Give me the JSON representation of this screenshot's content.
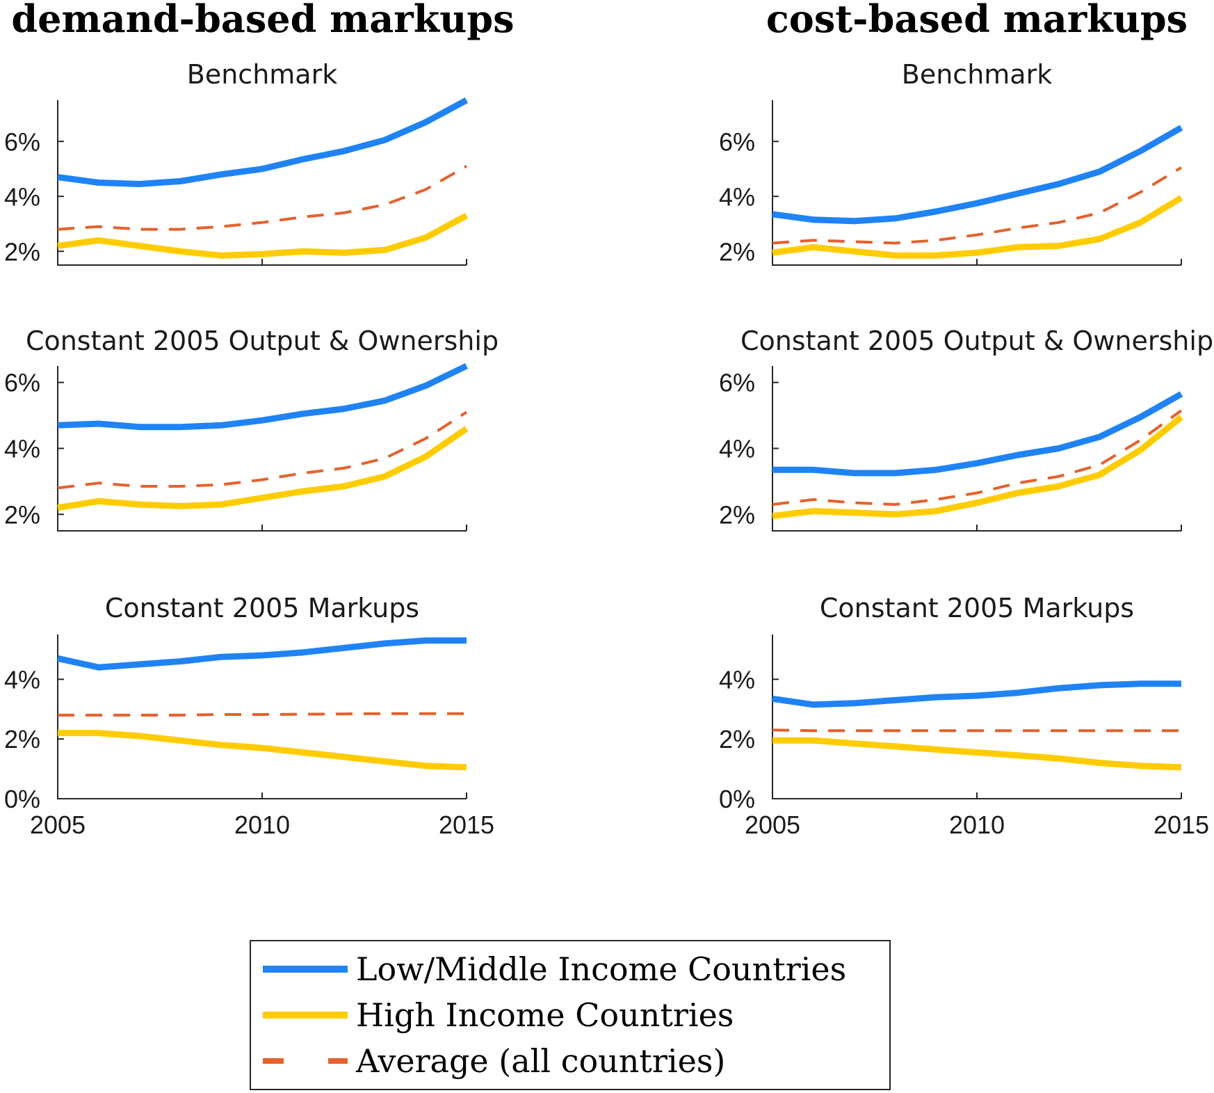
{
  "chart_data": [
    {
      "type": "line",
      "title": "Benchmark",
      "x": [
        2005,
        2006,
        2007,
        2008,
        2009,
        2010,
        2011,
        2012,
        2013,
        2014,
        2015
      ],
      "xlim": [
        2005,
        2015
      ],
      "ylim": [
        1.5,
        7.5
      ],
      "yticks": [
        2,
        4,
        6
      ],
      "ytick_labels": [
        "2%",
        "4%",
        "6%"
      ],
      "series": [
        {
          "key": "low_middle",
          "values": [
            4.7,
            4.5,
            4.45,
            4.55,
            4.8,
            5.0,
            5.35,
            5.65,
            6.05,
            6.7,
            7.5
          ]
        },
        {
          "key": "high",
          "values": [
            2.2,
            2.4,
            2.2,
            2.0,
            1.85,
            1.9,
            2.0,
            1.95,
            2.05,
            2.5,
            3.3
          ]
        },
        {
          "key": "average",
          "values": [
            2.8,
            2.9,
            2.8,
            2.8,
            2.9,
            3.05,
            3.25,
            3.4,
            3.7,
            4.25,
            5.1
          ]
        }
      ]
    },
    {
      "type": "line",
      "title": "Benchmark",
      "x": [
        2005,
        2006,
        2007,
        2008,
        2009,
        2010,
        2011,
        2012,
        2013,
        2014,
        2015
      ],
      "xlim": [
        2005,
        2015
      ],
      "ylim": [
        1.5,
        7.5
      ],
      "yticks": [
        2,
        4,
        6
      ],
      "ytick_labels": [
        "2%",
        "4%",
        "6%"
      ],
      "series": [
        {
          "key": "low_middle",
          "values": [
            3.35,
            3.15,
            3.1,
            3.2,
            3.45,
            3.75,
            4.1,
            4.45,
            4.9,
            5.65,
            6.5
          ]
        },
        {
          "key": "high",
          "values": [
            1.95,
            2.15,
            2.0,
            1.85,
            1.85,
            1.95,
            2.15,
            2.2,
            2.45,
            3.05,
            3.95
          ]
        },
        {
          "key": "average",
          "values": [
            2.3,
            2.4,
            2.35,
            2.3,
            2.4,
            2.6,
            2.85,
            3.05,
            3.4,
            4.15,
            5.05
          ]
        }
      ]
    },
    {
      "type": "line",
      "title": "Constant 2005 Output & Ownership",
      "x": [
        2005,
        2006,
        2007,
        2008,
        2009,
        2010,
        2011,
        2012,
        2013,
        2014,
        2015
      ],
      "xlim": [
        2005,
        2015
      ],
      "ylim": [
        1.5,
        6.5
      ],
      "yticks": [
        2,
        4,
        6
      ],
      "ytick_labels": [
        "2%",
        "4%",
        "6%"
      ],
      "series": [
        {
          "key": "low_middle",
          "values": [
            4.7,
            4.75,
            4.65,
            4.65,
            4.7,
            4.85,
            5.05,
            5.2,
            5.45,
            5.9,
            6.5
          ]
        },
        {
          "key": "high",
          "values": [
            2.2,
            2.4,
            2.3,
            2.25,
            2.3,
            2.5,
            2.7,
            2.85,
            3.15,
            3.75,
            4.6
          ]
        },
        {
          "key": "average",
          "values": [
            2.8,
            2.95,
            2.85,
            2.85,
            2.9,
            3.05,
            3.25,
            3.4,
            3.7,
            4.3,
            5.1
          ]
        }
      ]
    },
    {
      "type": "line",
      "title": "Constant 2005 Output & Ownership",
      "x": [
        2005,
        2006,
        2007,
        2008,
        2009,
        2010,
        2011,
        2012,
        2013,
        2014,
        2015
      ],
      "xlim": [
        2005,
        2015
      ],
      "ylim": [
        1.5,
        6.5
      ],
      "yticks": [
        2,
        4,
        6
      ],
      "ytick_labels": [
        "2%",
        "4%",
        "6%"
      ],
      "series": [
        {
          "key": "low_middle",
          "values": [
            3.35,
            3.35,
            3.25,
            3.25,
            3.35,
            3.55,
            3.8,
            4.0,
            4.35,
            4.95,
            5.65
          ]
        },
        {
          "key": "high",
          "values": [
            1.95,
            2.1,
            2.05,
            2.0,
            2.1,
            2.35,
            2.65,
            2.85,
            3.2,
            3.95,
            4.95
          ]
        },
        {
          "key": "average",
          "values": [
            2.3,
            2.45,
            2.35,
            2.3,
            2.45,
            2.65,
            2.95,
            3.15,
            3.5,
            4.25,
            5.15
          ]
        }
      ]
    },
    {
      "type": "line",
      "title": "Constant 2005 Markups",
      "x": [
        2005,
        2006,
        2007,
        2008,
        2009,
        2010,
        2011,
        2012,
        2013,
        2014,
        2015
      ],
      "xlim": [
        2005,
        2015
      ],
      "ylim": [
        0,
        5.5
      ],
      "yticks": [
        0,
        2,
        4
      ],
      "ytick_labels": [
        "0%",
        "2%",
        "4%"
      ],
      "series": [
        {
          "key": "low_middle",
          "values": [
            4.7,
            4.4,
            4.5,
            4.6,
            4.75,
            4.8,
            4.9,
            5.05,
            5.2,
            5.3,
            5.3
          ]
        },
        {
          "key": "high",
          "values": [
            2.2,
            2.2,
            2.1,
            1.95,
            1.8,
            1.7,
            1.55,
            1.4,
            1.25,
            1.1,
            1.05
          ]
        },
        {
          "key": "average",
          "values": [
            2.8,
            2.8,
            2.8,
            2.8,
            2.82,
            2.82,
            2.83,
            2.84,
            2.85,
            2.85,
            2.85
          ]
        }
      ]
    },
    {
      "type": "line",
      "title": "Constant 2005 Markups",
      "x": [
        2005,
        2006,
        2007,
        2008,
        2009,
        2010,
        2011,
        2012,
        2013,
        2014,
        2015
      ],
      "xlim": [
        2005,
        2015
      ],
      "ylim": [
        0,
        5.5
      ],
      "yticks": [
        0,
        2,
        4
      ],
      "ytick_labels": [
        "0%",
        "2%",
        "4%"
      ],
      "series": [
        {
          "key": "low_middle",
          "values": [
            3.35,
            3.15,
            3.2,
            3.3,
            3.4,
            3.45,
            3.55,
            3.7,
            3.8,
            3.85,
            3.85
          ]
        },
        {
          "key": "high",
          "values": [
            1.95,
            1.95,
            1.85,
            1.75,
            1.65,
            1.55,
            1.45,
            1.35,
            1.2,
            1.1,
            1.05
          ]
        },
        {
          "key": "average",
          "values": [
            2.3,
            2.28,
            2.28,
            2.28,
            2.28,
            2.28,
            2.28,
            2.28,
            2.28,
            2.28,
            2.28
          ]
        }
      ]
    }
  ],
  "column_titles": [
    "demand-based markups",
    "cost-based markups"
  ],
  "xticks": [
    2005,
    2010,
    2015
  ],
  "xtick_labels": [
    "2005",
    "2010",
    "2015"
  ],
  "legend": {
    "placement": "bottom-center",
    "entries": [
      {
        "key": "low_middle",
        "label": "Low/Middle Income Countries",
        "color": "#1F83F5",
        "style": "solid"
      },
      {
        "key": "high",
        "label": "High Income Countries",
        "color": "#FFCC00",
        "style": "solid"
      },
      {
        "key": "average",
        "label": "Average (all countries)",
        "color": "#E5612B",
        "style": "dashed"
      }
    ]
  }
}
